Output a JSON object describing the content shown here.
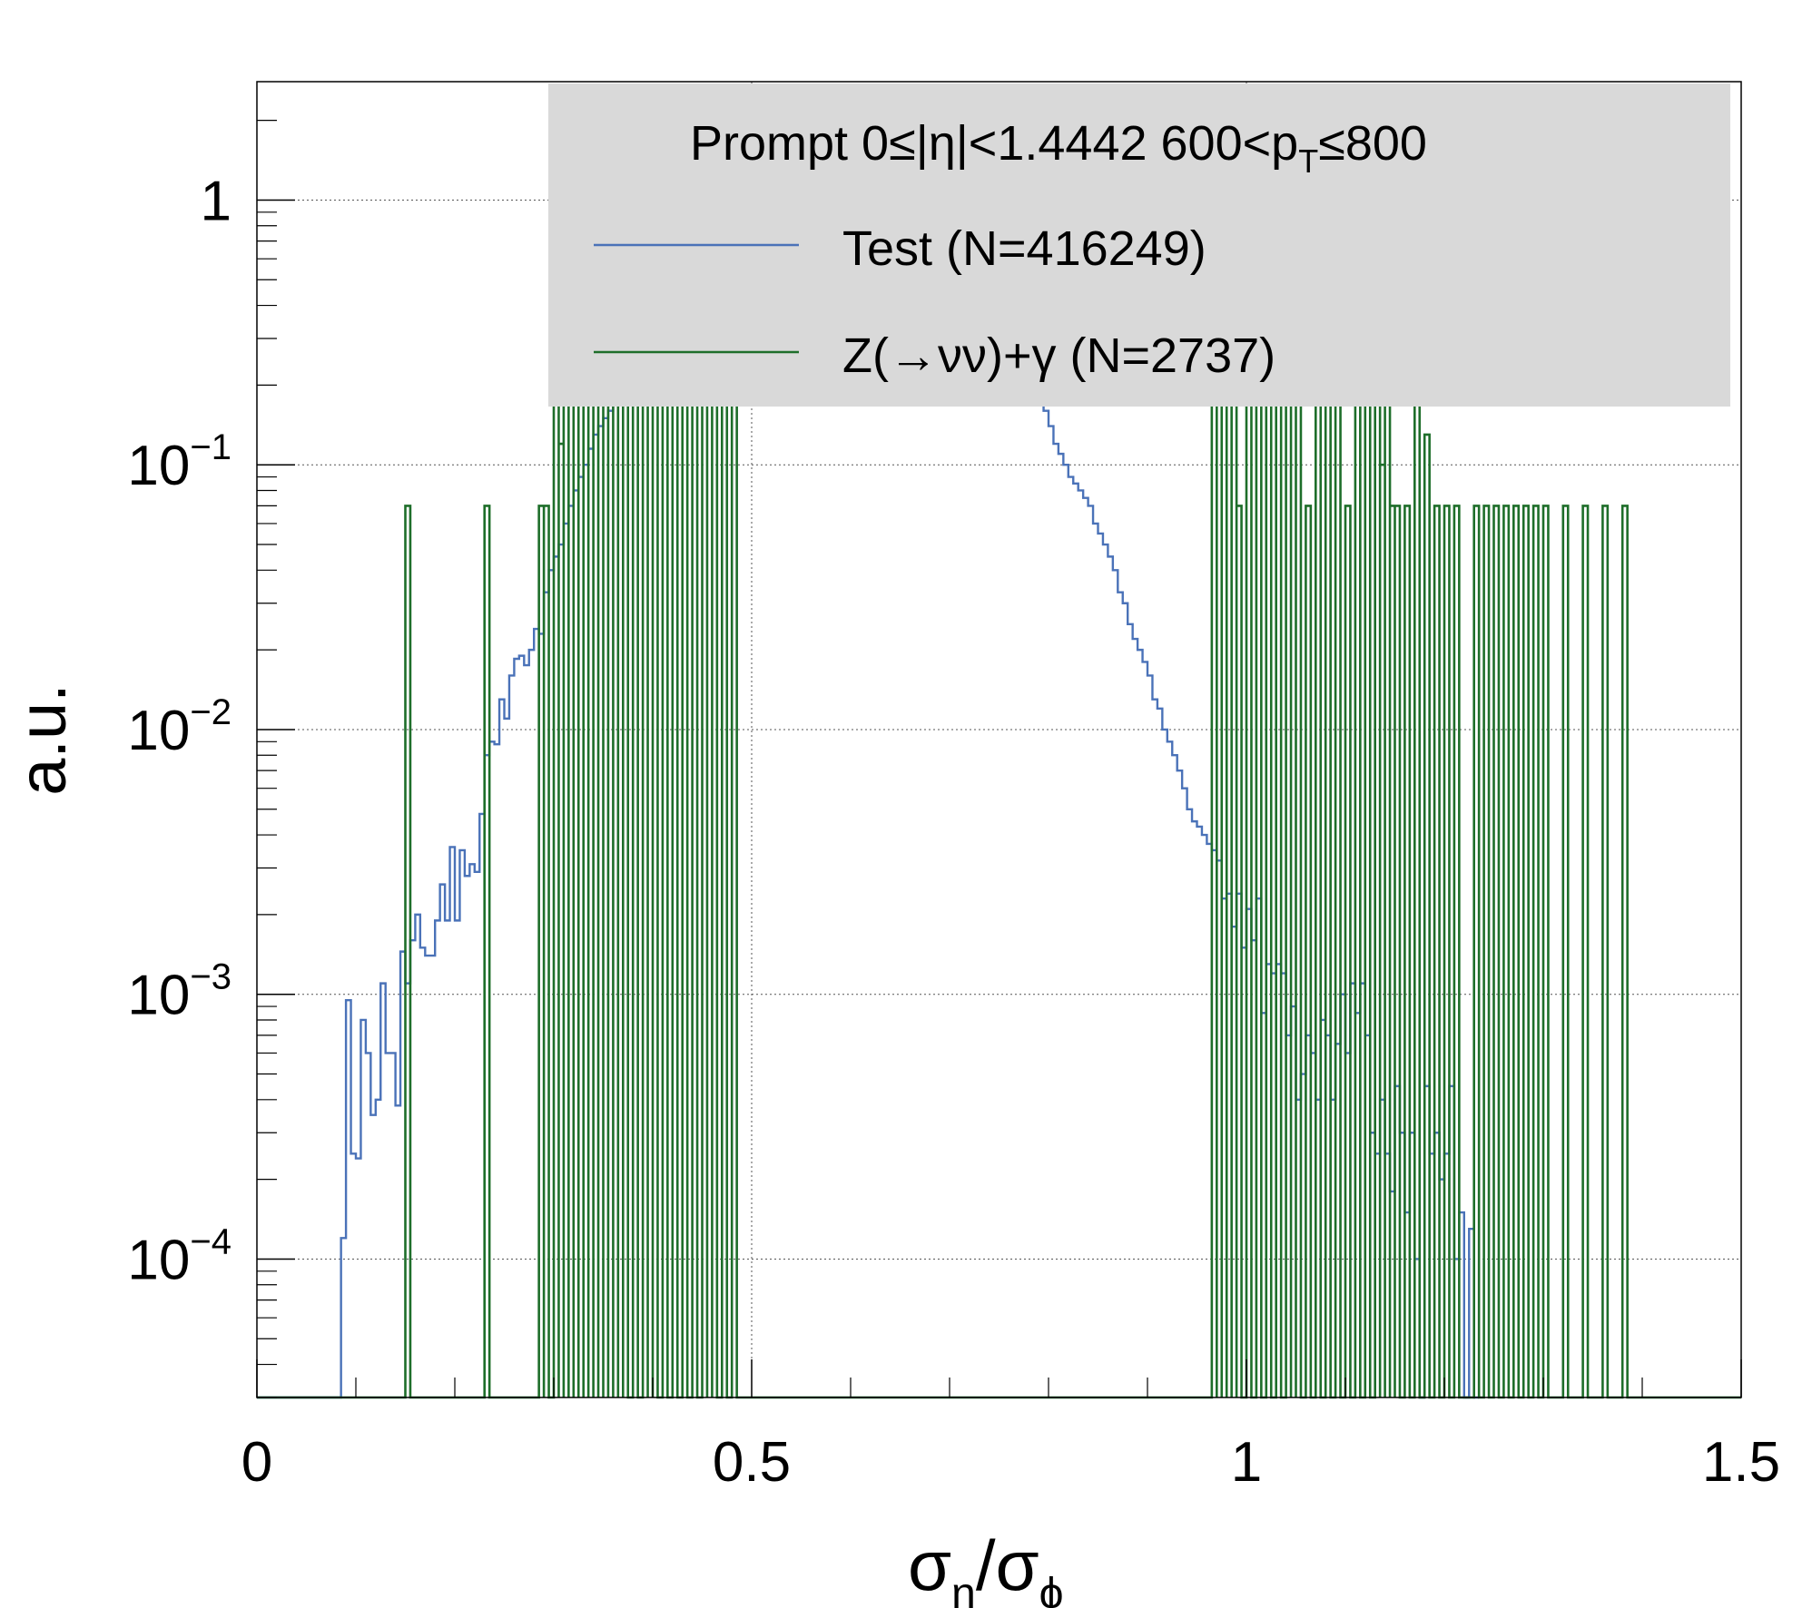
{
  "chart_data": {
    "type": "step-histogram",
    "y_scale": "log",
    "grid": true,
    "xlim": [
      0,
      1.5
    ],
    "ylim": [
      3e-05,
      2.8
    ],
    "bin_width": 0.005,
    "x_ticks": [
      "0",
      "0.5",
      "1",
      "1.5"
    ],
    "y_ticks": [
      {
        "base": "1",
        "exp": ""
      },
      {
        "base": "10",
        "exp": "−1"
      },
      {
        "base": "10",
        "exp": "−2"
      },
      {
        "base": "10",
        "exp": "−3"
      },
      {
        "base": "10",
        "exp": "−4"
      }
    ],
    "xlabel": {
      "main1": "σ",
      "sub1": "η",
      "slash": "/",
      "main2": "σ",
      "sub2": "ϕ"
    },
    "ylabel": "a.u.",
    "legend": {
      "placement": "top",
      "header": {
        "part1": "Prompt  0≤|η|<1.4442  600<p",
        "sub": "T",
        "part2": "≤800"
      }
    },
    "series": [
      {
        "name": "Test (N=416249)",
        "color": "#4a72b8",
        "x_start": 0.085,
        "values": [
          0.00012,
          0.00095,
          0.00025,
          0.00024,
          0.0008,
          0.0006,
          0.00035,
          0.0004,
          0.0011,
          0.0006,
          0.0006,
          0.00038,
          0.00145,
          0.0011,
          0.0016,
          0.002,
          0.0015,
          0.0014,
          0.0014,
          0.0019,
          0.0026,
          0.0019,
          0.0036,
          0.0019,
          0.0035,
          0.0028,
          0.0031,
          0.0029,
          0.0048,
          0.008,
          0.009,
          0.0088,
          0.013,
          0.011,
          0.016,
          0.0185,
          0.019,
          0.0175,
          0.02,
          0.024,
          0.023,
          0.033,
          0.04,
          0.045,
          0.05,
          0.06,
          0.07,
          0.08,
          0.09,
          0.1,
          0.115,
          0.13,
          0.14,
          0.15,
          0.16,
          0.18,
          0.2,
          0.22,
          0.25,
          0.28,
          0.3,
          0.32,
          0.35,
          0.38,
          0.4,
          0.45,
          0.5,
          0.55,
          0.6,
          0.65,
          0.7,
          0.75,
          0.8,
          0.85,
          0.9,
          0.95,
          1.0,
          1.05,
          1.1,
          1.15,
          1.2,
          1.25,
          1.3,
          1.35,
          1.4,
          1.45,
          1.5,
          1.55,
          1.6,
          1.6,
          1.62,
          1.65,
          1.65,
          1.68,
          1.7,
          1.7,
          1.7,
          1.72,
          1.72,
          1.75,
          1.75,
          1.75,
          1.72,
          1.72,
          1.7,
          1.7,
          1.7,
          1.68,
          1.65,
          1.65,
          1.6,
          1.6,
          1.55,
          1.5,
          1.45,
          1.4,
          1.35,
          1.3,
          1.25,
          1.2,
          1.15,
          1.1,
          1.0,
          0.95,
          0.9,
          0.85,
          0.8,
          0.75,
          0.7,
          0.65,
          0.6,
          0.55,
          0.5,
          0.45,
          0.4,
          0.36,
          0.32,
          0.28,
          0.25,
          0.22,
          0.2,
          0.18,
          0.16,
          0.14,
          0.12,
          0.11,
          0.1,
          0.09,
          0.085,
          0.08,
          0.075,
          0.07,
          0.06,
          0.055,
          0.05,
          0.045,
          0.04,
          0.033,
          0.03,
          0.025,
          0.022,
          0.02,
          0.018,
          0.016,
          0.013,
          0.012,
          0.01,
          0.009,
          0.008,
          0.007,
          0.006,
          0.005,
          0.0045,
          0.0043,
          0.004,
          0.0037,
          0.0035,
          0.0032,
          0.0023,
          0.0024,
          0.0018,
          0.0024,
          0.0015,
          0.0021,
          0.0016,
          0.0023,
          0.00085,
          0.0013,
          0.0012,
          0.0013,
          0.0012,
          0.0007,
          0.0009,
          0.0004,
          0.0005,
          0.0007,
          0.0006,
          0.0004,
          0.0008,
          0.0007,
          0.0004,
          0.00065,
          0.001,
          0.0006,
          0.0011,
          0.00085,
          0.0011,
          0.0007,
          0.0003,
          0.00025,
          0.0004,
          0.00025,
          0.00018,
          0.00045,
          0.0003,
          0.00015,
          0.0003,
          0.0001,
          3e-05,
          0.00045,
          0.00025,
          0.0003,
          0.0002,
          0.00025,
          0.00045,
          0.0001,
          0.00015,
          3e-05,
          0.00013,
          3e-05
        ]
      },
      {
        "name": "Z(→νν)+γ (N=2737)",
        "color": "#1e6e2a",
        "values": [
          [
            0.15,
            0.07
          ],
          [
            0.23,
            0.07
          ],
          [
            0.285,
            0.07
          ],
          [
            0.29,
            0.07
          ],
          [
            0.3,
            0.2
          ],
          [
            0.305,
            0.12
          ],
          [
            0.31,
            0.4
          ],
          [
            0.315,
            0.2
          ],
          [
            0.32,
            0.5
          ],
          [
            0.325,
            0.5
          ],
          [
            0.33,
            0.2
          ],
          [
            0.335,
            0.4
          ],
          [
            0.34,
            0.6
          ],
          [
            0.345,
            0.3
          ],
          [
            0.35,
            0.3
          ],
          [
            0.355,
            0.25
          ],
          [
            0.36,
            0.5
          ],
          [
            0.365,
            0.3
          ],
          [
            0.37,
            0.5
          ],
          [
            0.38,
            0.7
          ],
          [
            0.39,
            0.6
          ],
          [
            0.395,
            0.3
          ],
          [
            0.4,
            0.2
          ],
          [
            0.41,
            0.3
          ],
          [
            0.42,
            0.4
          ],
          [
            0.43,
            0.6
          ],
          [
            0.44,
            0.5
          ],
          [
            0.45,
            0.7
          ],
          [
            0.455,
            0.4
          ],
          [
            0.46,
            0.8
          ],
          [
            0.47,
            0.5
          ],
          [
            0.48,
            0.6
          ],
          [
            0.965,
            0.2
          ],
          [
            0.97,
            0.2
          ],
          [
            0.975,
            0.4
          ],
          [
            0.98,
            0.3
          ],
          [
            0.985,
            0.6
          ],
          [
            0.99,
            0.07
          ],
          [
            1.0,
            0.5
          ],
          [
            1.01,
            0.4
          ],
          [
            1.02,
            0.3
          ],
          [
            1.03,
            0.5
          ],
          [
            1.04,
            0.2
          ],
          [
            1.045,
            0.3
          ],
          [
            1.05,
            0.2
          ],
          [
            1.06,
            0.07
          ],
          [
            1.07,
            0.3
          ],
          [
            1.08,
            0.2
          ],
          [
            1.09,
            0.4
          ],
          [
            1.1,
            0.07
          ],
          [
            1.11,
            0.2
          ],
          [
            1.12,
            0.35
          ],
          [
            1.13,
            0.2
          ],
          [
            1.135,
            0.1
          ],
          [
            1.14,
            0.2
          ],
          [
            1.145,
            0.07
          ],
          [
            1.15,
            0.07
          ],
          [
            1.16,
            0.07
          ],
          [
            1.17,
            0.2
          ],
          [
            1.18,
            0.13
          ],
          [
            1.19,
            0.07
          ],
          [
            1.2,
            0.07
          ],
          [
            1.21,
            0.07
          ],
          [
            1.23,
            0.07
          ],
          [
            1.24,
            0.07
          ],
          [
            1.25,
            0.07
          ],
          [
            1.26,
            0.07
          ],
          [
            1.27,
            0.07
          ],
          [
            1.28,
            0.07
          ],
          [
            1.29,
            0.07
          ],
          [
            1.3,
            0.07
          ],
          [
            1.32,
            0.07
          ],
          [
            1.34,
            0.07
          ],
          [
            1.36,
            0.07
          ],
          [
            1.38,
            0.07
          ]
        ]
      }
    ]
  }
}
